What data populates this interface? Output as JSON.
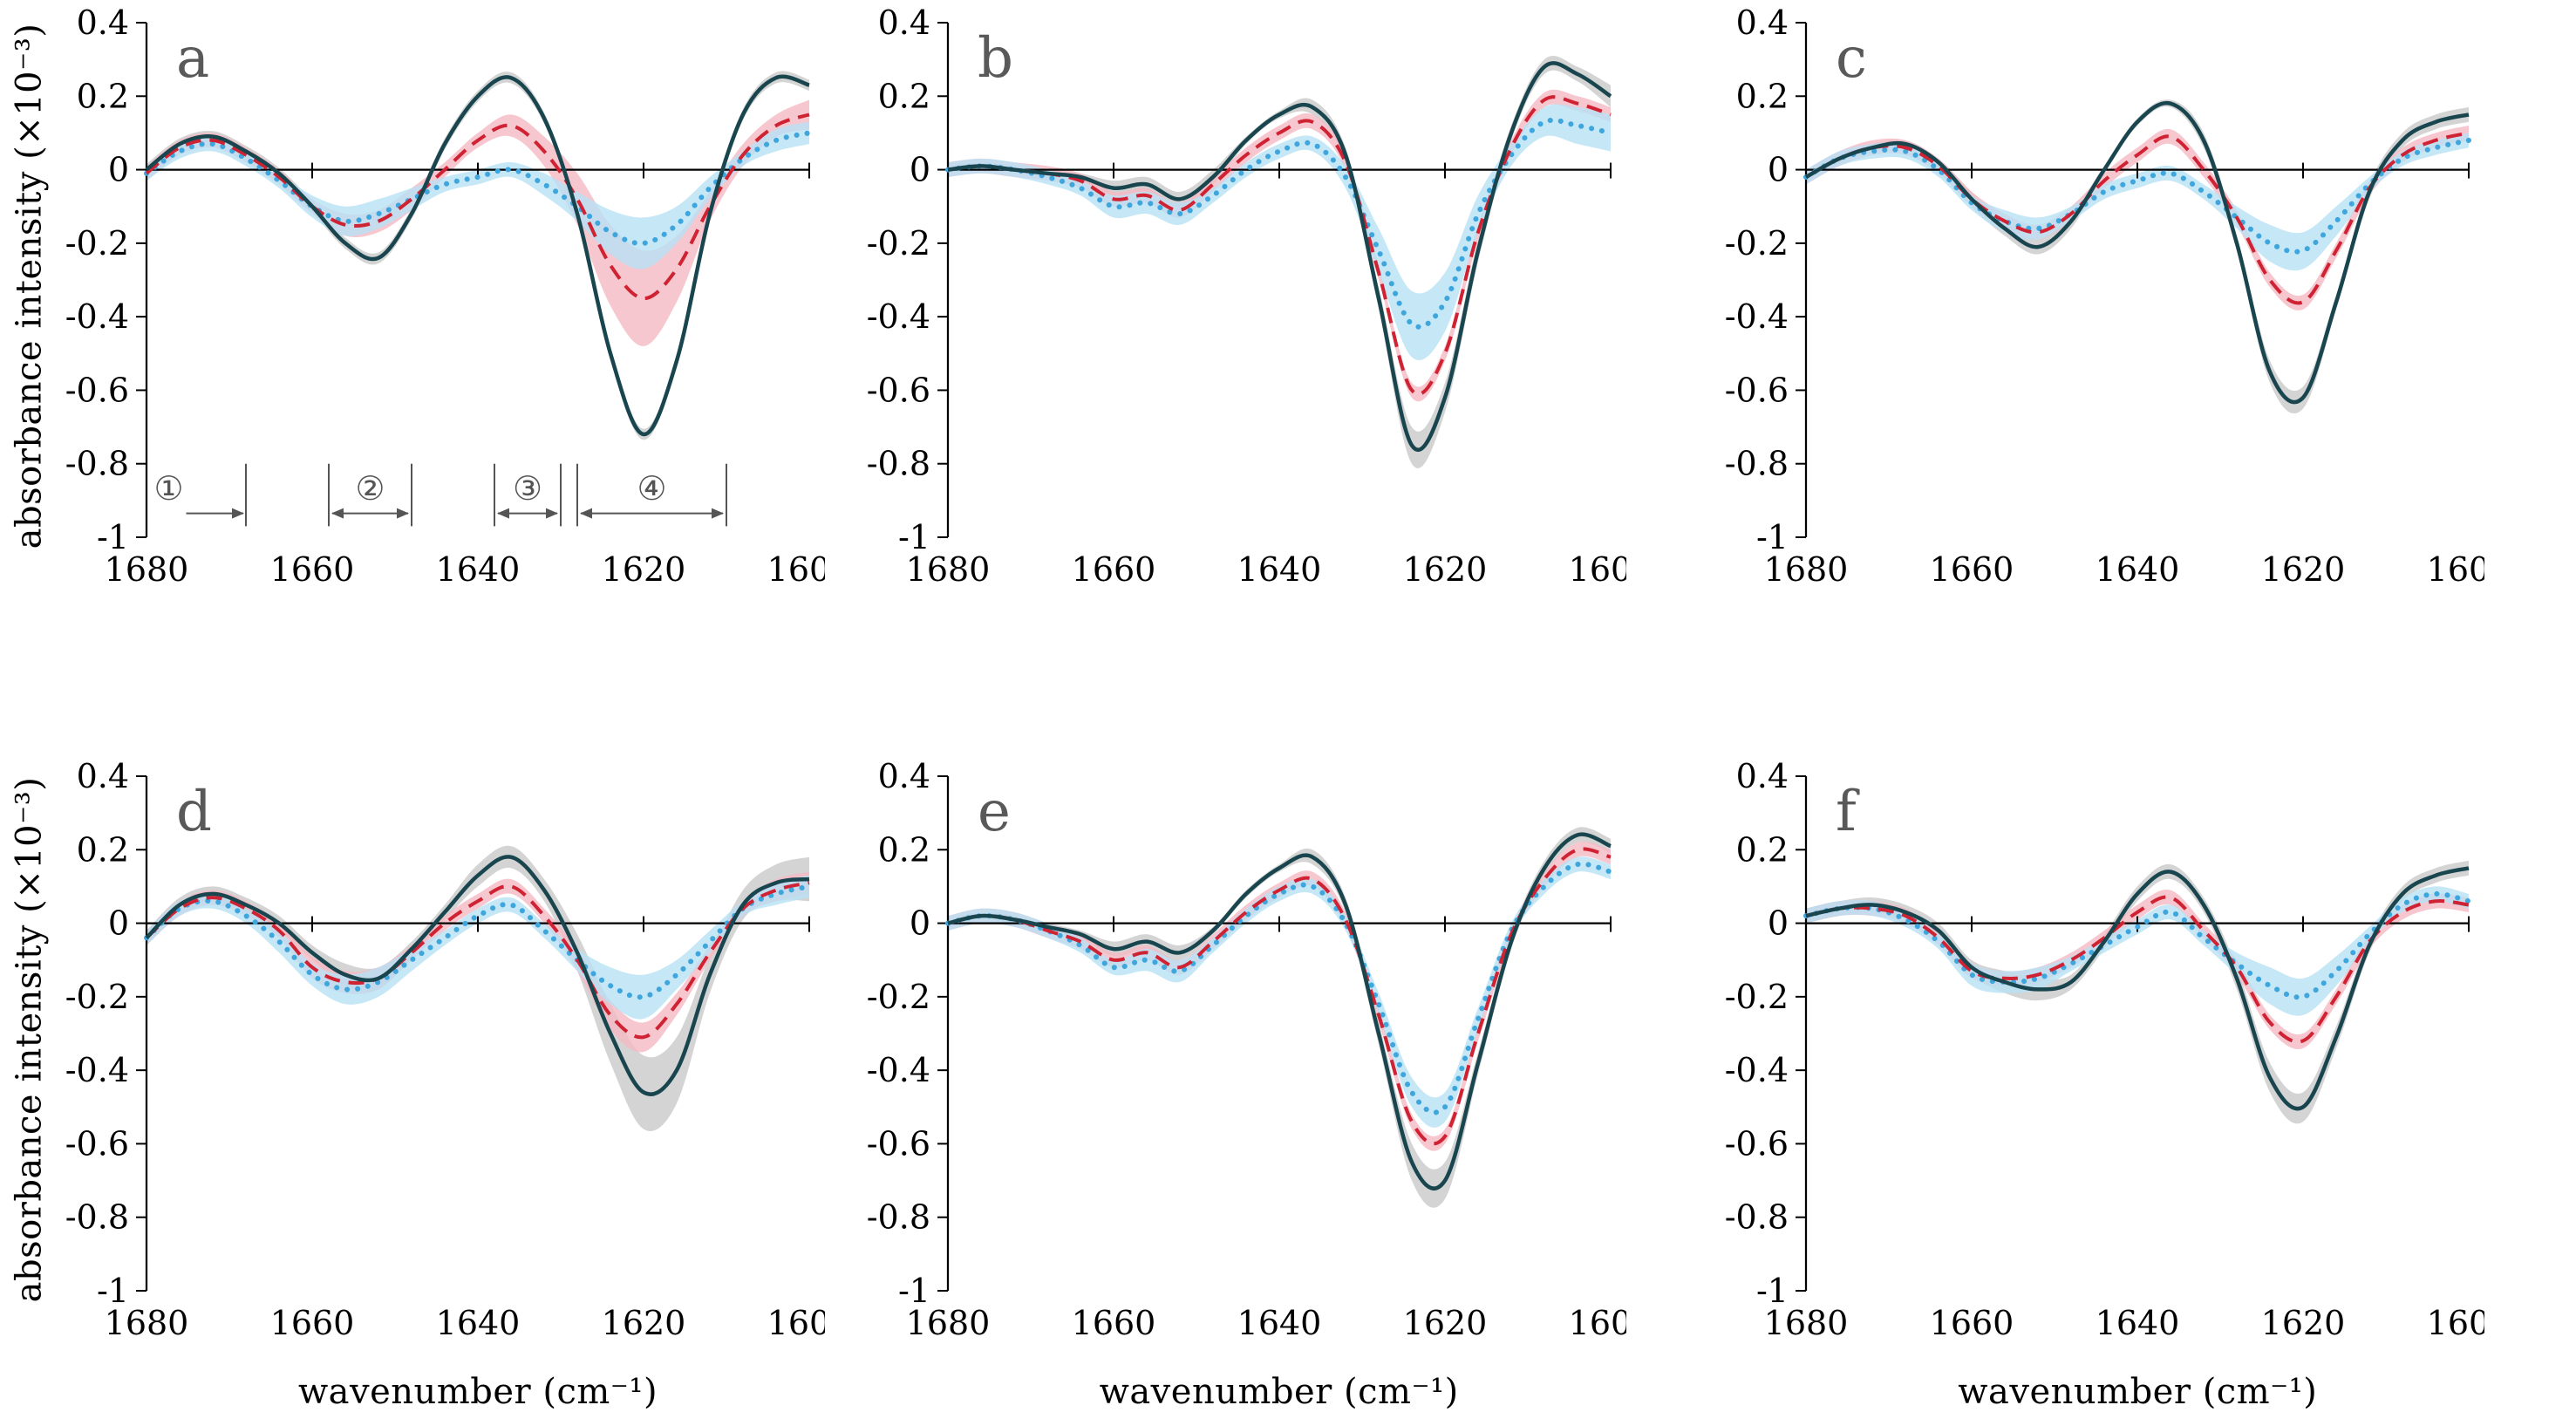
{
  "figure": {
    "y_axis_title": "absorbance intensity (×10⁻³)",
    "x_axis_title": "wavenumber (cm⁻¹)"
  },
  "colors": {
    "axis": "#000000",
    "panel_letter": "#595959",
    "annotation": "#555555",
    "series_solid": "#19454f",
    "series_dashed": "#cf2233",
    "series_dotted": "#3ea6dd",
    "band_gray": "#c9c9c9",
    "band_pink": "#f5b9c3",
    "band_blue": "#b7e1f4"
  },
  "chart_data": {
    "type": "line",
    "x_label": "wavenumber (cm⁻¹)",
    "y_label": "absorbance intensity (×10⁻³)",
    "x": [
      1680,
      1676,
      1672,
      1668,
      1664,
      1660,
      1656,
      1652,
      1648,
      1644,
      1640,
      1636,
      1632,
      1628,
      1624,
      1620,
      1616,
      1612,
      1608,
      1604,
      1600
    ],
    "x_ticks": [
      1680,
      1660,
      1640,
      1620,
      1600
    ],
    "x_tick_labels": [
      "1680",
      "1660",
      "1640",
      "1620",
      "1600"
    ],
    "x_range": [
      1680,
      1600
    ],
    "y_ticks": [
      0.4,
      0.2,
      0,
      -0.2,
      -0.4,
      -0.6,
      -0.8,
      -1
    ],
    "y_tick_labels": [
      "0.4",
      "0.2",
      "0",
      "-0.2",
      "-0.4",
      "-0.6",
      "-0.8",
      "-1"
    ],
    "y_range": [
      -1,
      0.4
    ],
    "panels": [
      {
        "panel_label": "a",
        "series": [
          {
            "name": "dark-solid",
            "dash": "solid",
            "color": "#19454f",
            "band_color": "#c9c9c9",
            "values": [
              0.0,
              0.07,
              0.09,
              0.05,
              -0.01,
              -0.1,
              -0.2,
              -0.24,
              -0.12,
              0.07,
              0.2,
              0.25,
              0.14,
              -0.12,
              -0.5,
              -0.72,
              -0.52,
              -0.12,
              0.15,
              0.25,
              0.23
            ],
            "band": 0.015
          },
          {
            "name": "red-dashed",
            "dash": "dashed",
            "color": "#cf2233",
            "band_color": "#f5b9c3",
            "values": [
              -0.01,
              0.06,
              0.08,
              0.04,
              -0.02,
              -0.1,
              -0.15,
              -0.14,
              -0.08,
              0.0,
              0.08,
              0.12,
              0.05,
              -0.08,
              -0.26,
              -0.35,
              -0.27,
              -0.1,
              0.04,
              0.12,
              0.15
            ],
            "band": [
              0.02,
              0.02,
              0.02,
              0.02,
              0.02,
              0.02,
              0.03,
              0.03,
              0.03,
              0.02,
              0.02,
              0.03,
              0.04,
              0.07,
              0.11,
              0.13,
              0.09,
              0.04,
              0.03,
              0.03,
              0.04
            ]
          },
          {
            "name": "blue-dotted",
            "dash": "dotted",
            "color": "#3ea6dd",
            "band_color": "#b7e1f4",
            "values": [
              -0.01,
              0.05,
              0.07,
              0.03,
              -0.03,
              -0.1,
              -0.14,
              -0.12,
              -0.08,
              -0.04,
              -0.02,
              0.0,
              -0.04,
              -0.1,
              -0.17,
              -0.2,
              -0.15,
              -0.05,
              0.03,
              0.08,
              0.1
            ],
            "band": [
              0.02,
              0.02,
              0.02,
              0.02,
              0.02,
              0.03,
              0.04,
              0.04,
              0.03,
              0.02,
              0.02,
              0.02,
              0.03,
              0.04,
              0.06,
              0.07,
              0.05,
              0.03,
              0.02,
              0.03,
              0.03
            ]
          }
        ],
        "annotations": {
          "bar_top_y": -0.8,
          "bar_bottom_y": -0.97,
          "label_y": -0.87,
          "arrow_y": -0.935,
          "regions": [
            {
              "label": "①",
              "x_from": 1679,
              "x_to": 1668,
              "arrow": "single"
            },
            {
              "label": "②",
              "x_from": 1658,
              "x_to": 1648,
              "arrow": "double"
            },
            {
              "label": "③",
              "x_from": 1638,
              "x_to": 1630,
              "arrow": "double"
            },
            {
              "label": "④",
              "x_from": 1628,
              "x_to": 1610,
              "arrow": "double"
            }
          ]
        }
      },
      {
        "panel_label": "b",
        "series": [
          {
            "name": "dark-solid",
            "dash": "solid",
            "color": "#19454f",
            "band_color": "#c9c9c9",
            "values": [
              0.0,
              0.01,
              0.0,
              -0.01,
              -0.02,
              -0.05,
              -0.04,
              -0.08,
              -0.02,
              0.08,
              0.15,
              0.17,
              0.04,
              -0.35,
              -0.75,
              -0.62,
              -0.22,
              0.1,
              0.28,
              0.26,
              0.2
            ],
            "band": [
              0.01,
              0.01,
              0.01,
              0.01,
              0.01,
              0.02,
              0.02,
              0.02,
              0.02,
              0.01,
              0.01,
              0.02,
              0.02,
              0.03,
              0.05,
              0.04,
              0.03,
              0.02,
              0.02,
              0.02,
              0.03
            ]
          },
          {
            "name": "red-dashed",
            "dash": "dashed",
            "color": "#cf2233",
            "band_color": "#f5b9c3",
            "values": [
              0.0,
              0.01,
              0.0,
              -0.01,
              -0.03,
              -0.08,
              -0.07,
              -0.11,
              -0.04,
              0.04,
              0.1,
              0.13,
              0.02,
              -0.28,
              -0.6,
              -0.5,
              -0.17,
              0.06,
              0.19,
              0.18,
              0.15
            ],
            "band": 0.02
          },
          {
            "name": "blue-dotted",
            "dash": "dotted",
            "color": "#3ea6dd",
            "band_color": "#b7e1f4",
            "values": [
              0.0,
              0.01,
              0.0,
              -0.02,
              -0.05,
              -0.1,
              -0.09,
              -0.12,
              -0.07,
              0.0,
              0.05,
              0.07,
              -0.02,
              -0.22,
              -0.42,
              -0.36,
              -0.12,
              0.04,
              0.13,
              0.12,
              0.1
            ],
            "band": [
              0.02,
              0.02,
              0.02,
              0.02,
              0.02,
              0.03,
              0.03,
              0.03,
              0.02,
              0.02,
              0.02,
              0.02,
              0.03,
              0.06,
              0.09,
              0.08,
              0.05,
              0.03,
              0.04,
              0.05,
              0.05
            ]
          }
        ]
      },
      {
        "panel_label": "c",
        "series": [
          {
            "name": "dark-solid",
            "dash": "solid",
            "color": "#19454f",
            "band_color": "#c9c9c9",
            "values": [
              -0.02,
              0.03,
              0.06,
              0.07,
              0.02,
              -0.08,
              -0.16,
              -0.21,
              -0.14,
              0.0,
              0.13,
              0.18,
              0.08,
              -0.2,
              -0.55,
              -0.62,
              -0.36,
              -0.06,
              0.08,
              0.13,
              0.15
            ],
            "band": [
              0.01,
              0.01,
              0.01,
              0.01,
              0.01,
              0.02,
              0.02,
              0.02,
              0.02,
              0.01,
              0.01,
              0.01,
              0.02,
              0.02,
              0.03,
              0.03,
              0.02,
              0.02,
              0.02,
              0.02,
              0.02
            ]
          },
          {
            "name": "red-dashed",
            "dash": "dashed",
            "color": "#cf2233",
            "band_color": "#f5b9c3",
            "values": [
              -0.02,
              0.03,
              0.06,
              0.06,
              0.01,
              -0.08,
              -0.14,
              -0.17,
              -0.12,
              -0.03,
              0.04,
              0.09,
              0.0,
              -0.13,
              -0.3,
              -0.36,
              -0.22,
              -0.05,
              0.04,
              0.08,
              0.1
            ],
            "band": 0.02
          },
          {
            "name": "blue-dotted",
            "dash": "dotted",
            "color": "#3ea6dd",
            "band_color": "#b7e1f4",
            "values": [
              -0.02,
              0.03,
              0.05,
              0.05,
              0.0,
              -0.09,
              -0.14,
              -0.16,
              -0.12,
              -0.06,
              -0.03,
              -0.01,
              -0.06,
              -0.13,
              -0.2,
              -0.22,
              -0.14,
              -0.04,
              0.03,
              0.06,
              0.08
            ],
            "band": [
              0.02,
              0.02,
              0.02,
              0.02,
              0.02,
              0.02,
              0.03,
              0.03,
              0.02,
              0.02,
              0.02,
              0.02,
              0.02,
              0.03,
              0.05,
              0.05,
              0.04,
              0.02,
              0.02,
              0.02,
              0.02
            ]
          }
        ]
      },
      {
        "panel_label": "d",
        "series": [
          {
            "name": "dark-solid",
            "dash": "solid",
            "color": "#19454f",
            "band_color": "#c9c9c9",
            "values": [
              -0.04,
              0.05,
              0.08,
              0.05,
              0.0,
              -0.08,
              -0.14,
              -0.15,
              -0.07,
              0.03,
              0.13,
              0.18,
              0.09,
              -0.08,
              -0.3,
              -0.46,
              -0.4,
              -0.14,
              0.05,
              0.11,
              0.12
            ],
            "band": [
              0.02,
              0.02,
              0.02,
              0.02,
              0.02,
              0.02,
              0.03,
              0.03,
              0.02,
              0.02,
              0.03,
              0.03,
              0.03,
              0.05,
              0.08,
              0.1,
              0.09,
              0.05,
              0.04,
              0.05,
              0.06
            ]
          },
          {
            "name": "red-dashed",
            "dash": "dashed",
            "color": "#cf2233",
            "band_color": "#f5b9c3",
            "values": [
              -0.04,
              0.04,
              0.07,
              0.04,
              -0.02,
              -0.12,
              -0.16,
              -0.15,
              -0.08,
              0.0,
              0.06,
              0.1,
              0.02,
              -0.1,
              -0.25,
              -0.31,
              -0.22,
              -0.08,
              0.04,
              0.09,
              0.11
            ],
            "band": [
              0.02,
              0.02,
              0.02,
              0.02,
              0.02,
              0.03,
              0.03,
              0.03,
              0.02,
              0.02,
              0.02,
              0.02,
              0.02,
              0.03,
              0.04,
              0.04,
              0.03,
              0.02,
              0.02,
              0.03,
              0.03
            ]
          },
          {
            "name": "blue-dotted",
            "dash": "dotted",
            "color": "#3ea6dd",
            "band_color": "#b7e1f4",
            "values": [
              -0.04,
              0.04,
              0.06,
              0.02,
              -0.05,
              -0.14,
              -0.18,
              -0.16,
              -0.1,
              -0.04,
              0.02,
              0.05,
              -0.02,
              -0.1,
              -0.17,
              -0.2,
              -0.14,
              -0.05,
              0.04,
              0.08,
              0.1
            ],
            "band": [
              0.02,
              0.02,
              0.02,
              0.02,
              0.03,
              0.03,
              0.04,
              0.04,
              0.03,
              0.02,
              0.02,
              0.02,
              0.02,
              0.03,
              0.05,
              0.06,
              0.04,
              0.03,
              0.02,
              0.03,
              0.03
            ]
          }
        ]
      },
      {
        "panel_label": "e",
        "series": [
          {
            "name": "dark-solid",
            "dash": "solid",
            "color": "#19454f",
            "band_color": "#c9c9c9",
            "values": [
              0.0,
              0.02,
              0.01,
              -0.01,
              -0.03,
              -0.07,
              -0.05,
              -0.08,
              -0.02,
              0.08,
              0.15,
              0.18,
              0.05,
              -0.3,
              -0.65,
              -0.7,
              -0.38,
              -0.05,
              0.15,
              0.24,
              0.21
            ],
            "band": [
              0.01,
              0.01,
              0.01,
              0.01,
              0.01,
              0.02,
              0.02,
              0.02,
              0.01,
              0.01,
              0.01,
              0.02,
              0.02,
              0.03,
              0.05,
              0.05,
              0.03,
              0.02,
              0.02,
              0.02,
              0.02
            ]
          },
          {
            "name": "red-dashed",
            "dash": "dashed",
            "color": "#cf2233",
            "band_color": "#f5b9c3",
            "values": [
              0.0,
              0.02,
              0.01,
              -0.02,
              -0.05,
              -0.1,
              -0.08,
              -0.12,
              -0.05,
              0.03,
              0.09,
              0.12,
              0.01,
              -0.25,
              -0.54,
              -0.58,
              -0.3,
              -0.03,
              0.12,
              0.2,
              0.18
            ],
            "band": 0.02
          },
          {
            "name": "blue-dotted",
            "dash": "dotted",
            "color": "#3ea6dd",
            "band_color": "#b7e1f4",
            "values": [
              0.0,
              0.02,
              0.01,
              -0.02,
              -0.06,
              -0.12,
              -0.1,
              -0.13,
              -0.06,
              0.02,
              0.08,
              0.1,
              0.0,
              -0.22,
              -0.46,
              -0.5,
              -0.26,
              -0.02,
              0.1,
              0.16,
              0.14
            ],
            "band": [
              0.02,
              0.02,
              0.02,
              0.02,
              0.02,
              0.02,
              0.03,
              0.03,
              0.02,
              0.02,
              0.02,
              0.02,
              0.02,
              0.03,
              0.04,
              0.04,
              0.03,
              0.02,
              0.02,
              0.02,
              0.02
            ]
          }
        ]
      },
      {
        "panel_label": "f",
        "series": [
          {
            "name": "dark-solid",
            "dash": "solid",
            "color": "#19454f",
            "band_color": "#c9c9c9",
            "values": [
              0.02,
              0.04,
              0.05,
              0.03,
              -0.02,
              -0.12,
              -0.16,
              -0.18,
              -0.16,
              -0.05,
              0.08,
              0.14,
              0.05,
              -0.15,
              -0.42,
              -0.5,
              -0.31,
              -0.06,
              0.08,
              0.13,
              0.15
            ],
            "band": [
              0.02,
              0.02,
              0.02,
              0.02,
              0.02,
              0.02,
              0.03,
              0.03,
              0.02,
              0.02,
              0.02,
              0.02,
              0.02,
              0.03,
              0.04,
              0.04,
              0.03,
              0.02,
              0.02,
              0.02,
              0.02
            ]
          },
          {
            "name": "red-dashed",
            "dash": "dashed",
            "color": "#cf2233",
            "band_color": "#f5b9c3",
            "values": [
              0.02,
              0.04,
              0.04,
              0.02,
              -0.04,
              -0.13,
              -0.15,
              -0.14,
              -0.1,
              -0.04,
              0.03,
              0.07,
              -0.02,
              -0.12,
              -0.27,
              -0.32,
              -0.2,
              -0.05,
              0.03,
              0.06,
              0.05
            ],
            "band": 0.02
          },
          {
            "name": "blue-dotted",
            "dash": "dotted",
            "color": "#3ea6dd",
            "band_color": "#b7e1f4",
            "values": [
              0.02,
              0.04,
              0.04,
              0.01,
              -0.05,
              -0.14,
              -0.16,
              -0.15,
              -0.11,
              -0.06,
              -0.01,
              0.03,
              -0.04,
              -0.11,
              -0.17,
              -0.2,
              -0.13,
              -0.03,
              0.05,
              0.08,
              0.06
            ],
            "band": [
              0.02,
              0.02,
              0.02,
              0.02,
              0.02,
              0.03,
              0.03,
              0.03,
              0.02,
              0.02,
              0.02,
              0.02,
              0.02,
              0.03,
              0.05,
              0.05,
              0.04,
              0.02,
              0.02,
              0.02,
              0.02
            ]
          }
        ]
      }
    ]
  }
}
